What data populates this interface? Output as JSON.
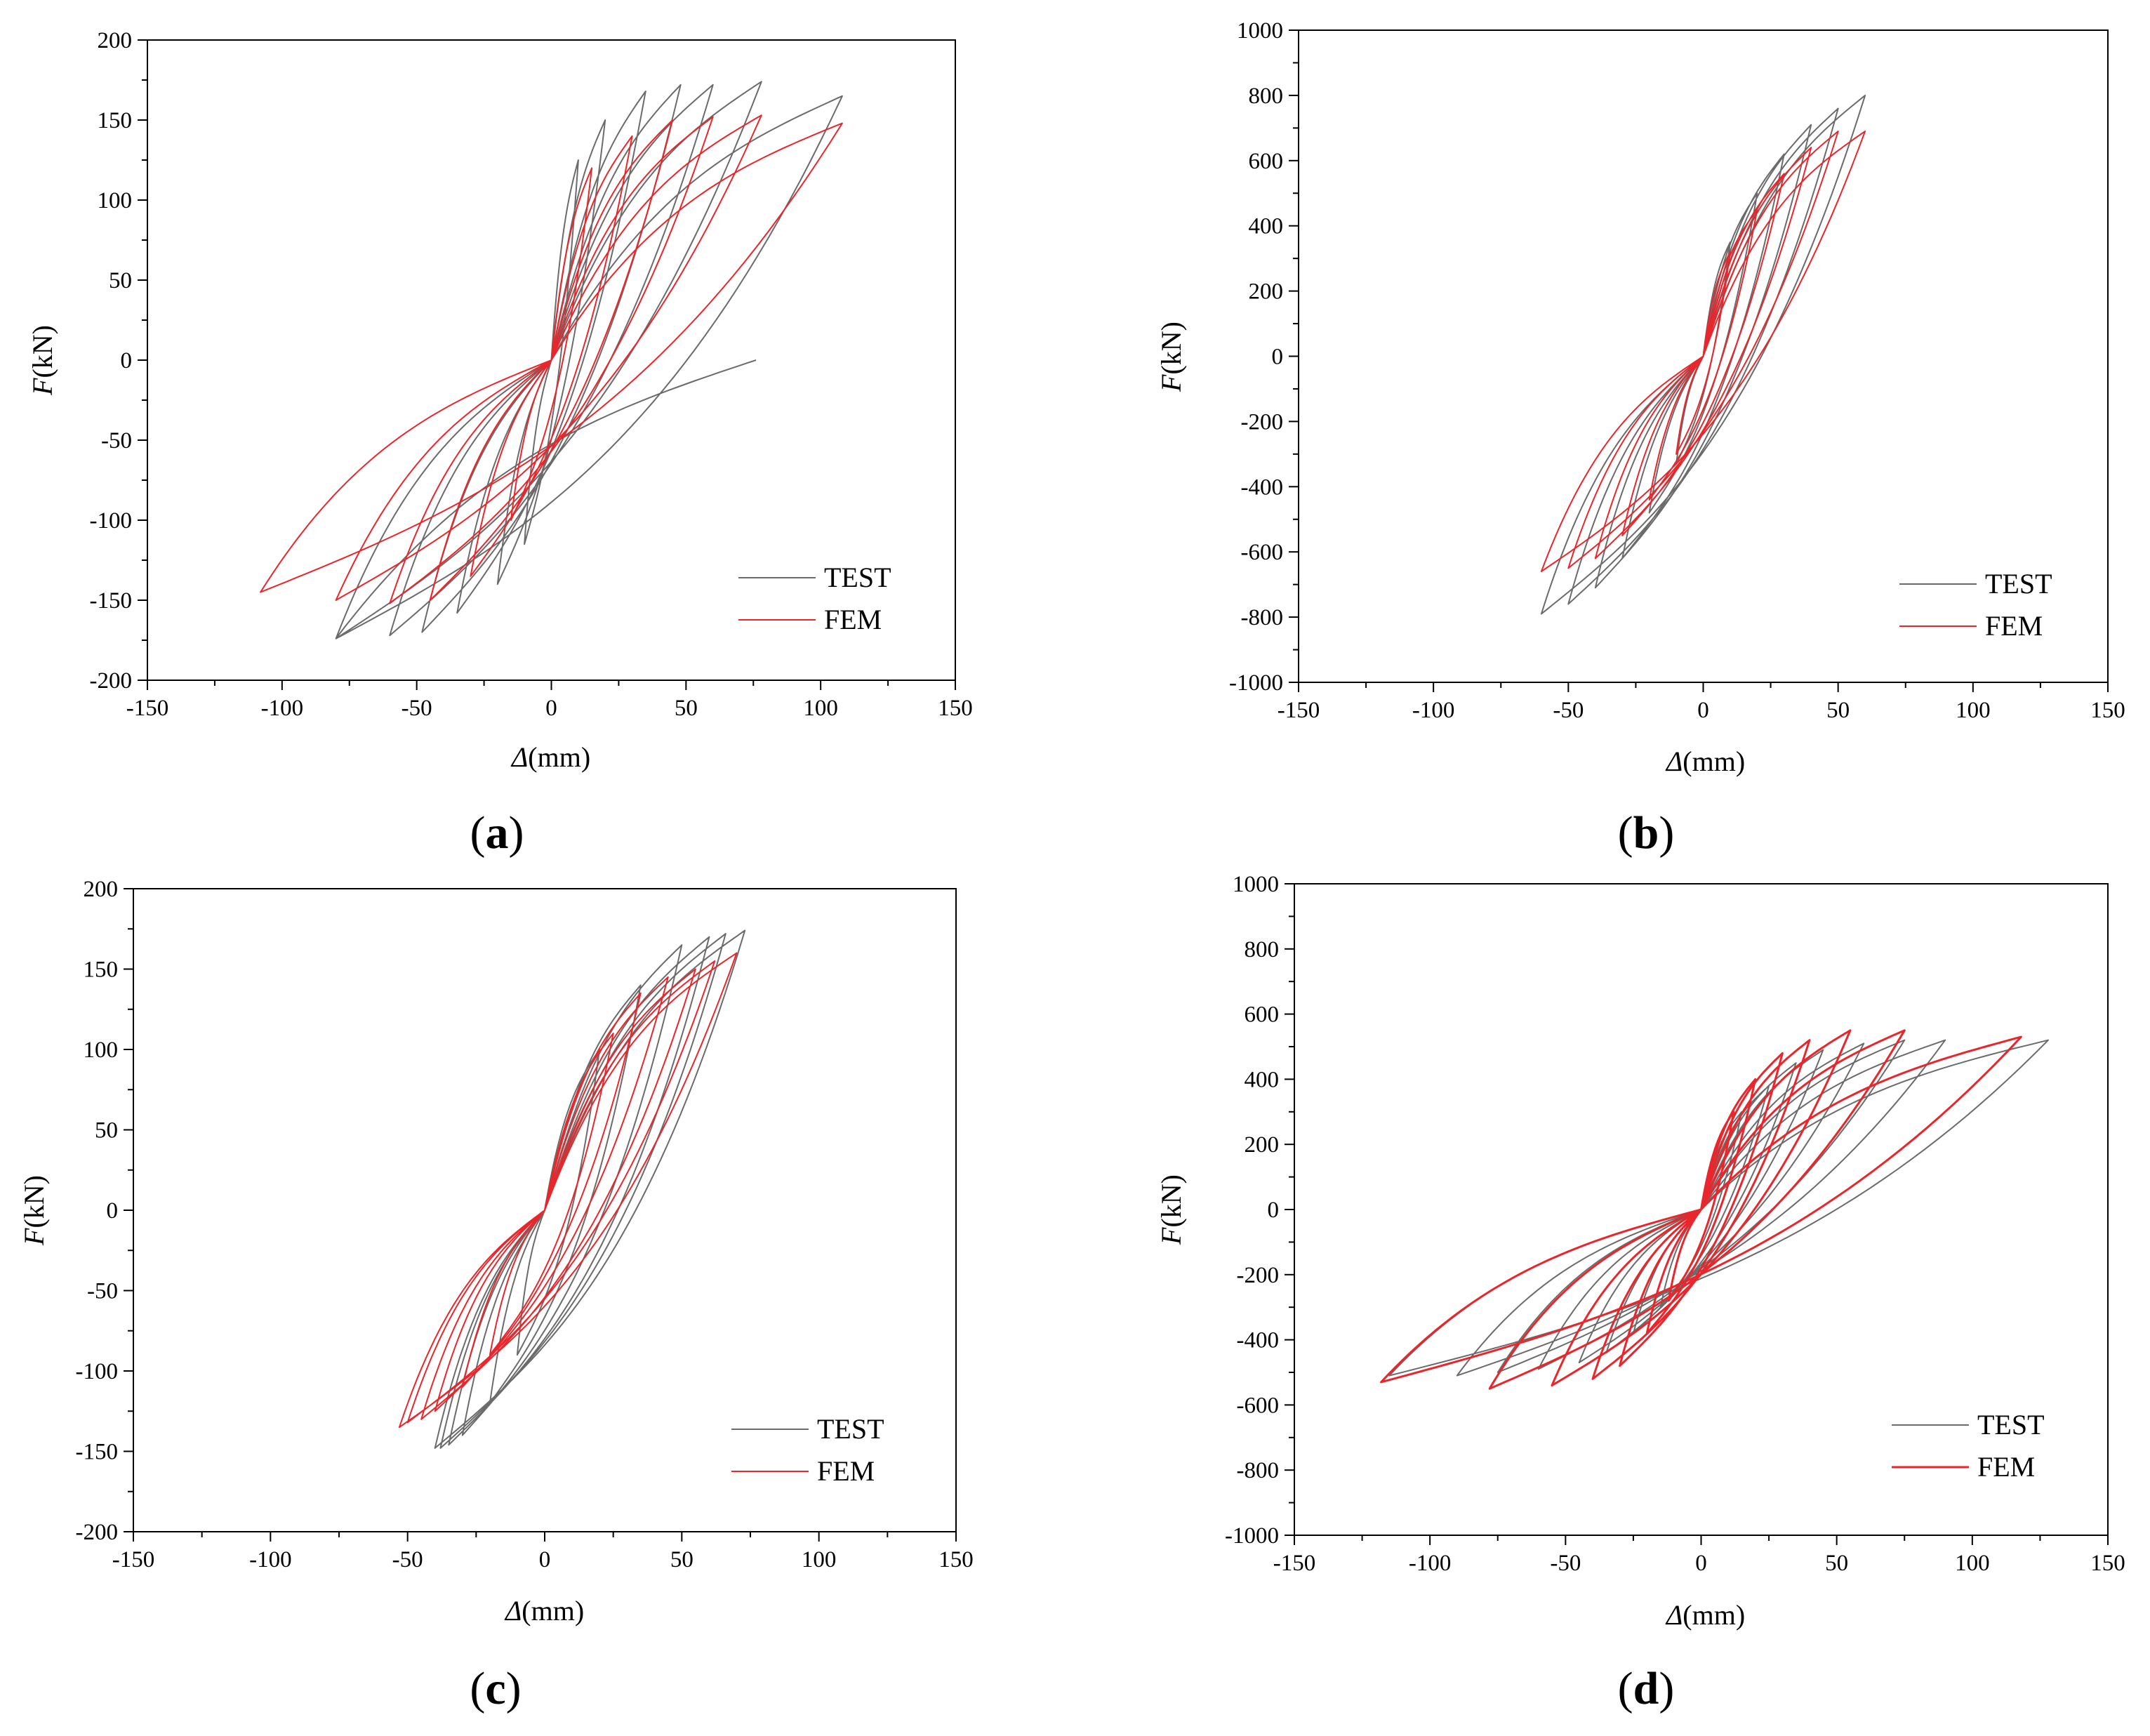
{
  "colors": {
    "test": "#6b6b6b",
    "fem": "#e8262b",
    "axis": "#000000"
  },
  "chart_data": [
    {
      "id": "a",
      "type": "line",
      "panel_label": "a",
      "xlabel_symbol": "Δ",
      "xlabel_unit": "(mm)",
      "ylabel_symbol": "F",
      "ylabel_unit": "(kN)",
      "xlim": [
        -150,
        150
      ],
      "ylim": [
        -200,
        200
      ],
      "xticks": [
        -150,
        -100,
        -50,
        0,
        50,
        100,
        150
      ],
      "yticks": [
        -200,
        -150,
        -100,
        -50,
        0,
        50,
        100,
        150,
        200
      ],
      "legend": [
        "TEST",
        "FEM"
      ],
      "legend_position": "bottom-right",
      "series": [
        {
          "name": "TEST",
          "drift": 0,
          "fade": 0.0,
          "s": 0.0,
          "end": [
            76,
            0
          ],
          "cycles": [
            [
              10,
              125,
              -10,
              -115
            ],
            [
              20,
              150,
              -20,
              -140
            ],
            [
              35,
              168,
              -35,
              -158
            ],
            [
              48,
              172,
              -48,
              -170
            ],
            [
              60,
              172,
              -60,
              -172
            ],
            [
              78,
              174,
              -80,
              -174
            ],
            [
              108,
              165,
              -80,
              -174
            ]
          ]
        },
        {
          "name": "FEM",
          "drift": 0,
          "fade": 0.0,
          "s": 0.0,
          "cycles": [
            [
              15,
              120,
              -15,
              -100
            ],
            [
              30,
              140,
              -30,
              -135
            ],
            [
              45,
              150,
              -45,
              -150
            ],
            [
              60,
              152,
              -60,
              -152
            ],
            [
              78,
              153,
              -80,
              -150
            ],
            [
              108,
              148,
              -108,
              -145
            ]
          ]
        }
      ]
    },
    {
      "id": "b",
      "type": "line",
      "panel_label": "b",
      "xlabel_symbol": "Δ",
      "xlabel_unit": "(mm)",
      "ylabel_symbol": "F",
      "ylabel_unit": "(kN)",
      "xlim": [
        -150,
        150
      ],
      "ylim": [
        -1000,
        1000
      ],
      "xticks": [
        -150,
        -100,
        -50,
        0,
        50,
        100,
        150
      ],
      "yticks": [
        -1000,
        -800,
        -600,
        -400,
        -200,
        0,
        200,
        400,
        600,
        800,
        1000
      ],
      "legend": [
        "TEST",
        "FEM"
      ],
      "legend_position": "bottom-right",
      "series": [
        {
          "name": "TEST",
          "drift": 0,
          "fade": 0.0,
          "s": 0.0,
          "cycles": [
            [
              10,
              350,
              -10,
              -330
            ],
            [
              20,
              500,
              -20,
              -480
            ],
            [
              30,
              620,
              -30,
              -620
            ],
            [
              40,
              710,
              -40,
              -710
            ],
            [
              50,
              760,
              -50,
              -760
            ],
            [
              60,
              800,
              -60,
              -790
            ]
          ]
        },
        {
          "name": "FEM",
          "drift": 0,
          "fade": 0.0,
          "s": 0.0,
          "cycles": [
            [
              10,
              320,
              -10,
              -300
            ],
            [
              20,
              450,
              -20,
              -440
            ],
            [
              30,
              560,
              -30,
              -550
            ],
            [
              40,
              640,
              -40,
              -620
            ],
            [
              50,
              690,
              -50,
              -650
            ],
            [
              60,
              690,
              -60,
              -660
            ]
          ]
        }
      ]
    },
    {
      "id": "c",
      "type": "line",
      "panel_label": "c",
      "xlabel_symbol": "Δ",
      "xlabel_unit": "(mm)",
      "ylabel_symbol": "F",
      "ylabel_unit": "(kN)",
      "xlim": [
        -150,
        150
      ],
      "ylim": [
        -200,
        200
      ],
      "xticks": [
        -150,
        -100,
        -50,
        0,
        50,
        100,
        150
      ],
      "yticks": [
        -200,
        -150,
        -100,
        -50,
        0,
        50,
        100,
        150,
        200
      ],
      "legend": [
        "TEST",
        "FEM"
      ],
      "legend_position": "bottom-right",
      "series": [
        {
          "name": "TEST",
          "drift": 0,
          "fade": 0.0,
          "s": 0.0,
          "cycles": [
            [
              20,
              100,
              -10,
              -90
            ],
            [
              35,
              140,
              -20,
              -120
            ],
            [
              50,
              165,
              -30,
              -140
            ],
            [
              60,
              170,
              -35,
              -146
            ],
            [
              66,
              172,
              -38,
              -148
            ],
            [
              73,
              174,
              -40,
              -148
            ]
          ]
        },
        {
          "name": "FEM",
          "drift": 0,
          "fade": 0.0,
          "s": 0.0,
          "cycles": [
            [
              25,
              110,
              -20,
              -90
            ],
            [
              35,
              135,
              -30,
              -110
            ],
            [
              45,
              145,
              -40,
              -125
            ],
            [
              55,
              150,
              -45,
              -130
            ],
            [
              62,
              155,
              -50,
              -132
            ],
            [
              70,
              160,
              -53,
              -135
            ]
          ]
        }
      ]
    },
    {
      "id": "d",
      "type": "line",
      "panel_label": "d",
      "xlabel_symbol": "Δ",
      "xlabel_unit": "(mm)",
      "ylabel_symbol": "F",
      "ylabel_unit": "(kN)",
      "xlim": [
        -150,
        150
      ],
      "ylim": [
        -1000,
        1000
      ],
      "xticks": [
        -150,
        -100,
        -50,
        0,
        50,
        100,
        150
      ],
      "yticks": [
        -1000,
        -800,
        -600,
        -400,
        -200,
        0,
        200,
        400,
        600,
        800,
        1000
      ],
      "legend": [
        "TEST",
        "FEM"
      ],
      "legend_position": "bottom-right",
      "series": [
        {
          "name": "TEST",
          "drift": 0,
          "fade": 0.0,
          "s": 0.0,
          "cycles": [
            [
              15,
              300,
              -15,
              -300
            ],
            [
              25,
              380,
              -25,
              -380
            ],
            [
              35,
              450,
              -35,
              -440
            ],
            [
              45,
              490,
              -45,
              -470
            ],
            [
              60,
              510,
              -60,
              -490
            ],
            [
              75,
              520,
              -75,
              -500
            ],
            [
              90,
              520,
              -90,
              -510
            ],
            [
              128,
              520,
              -115,
              -510
            ]
          ]
        },
        {
          "name": "FEM",
          "drift": 0,
          "fade": 0.0,
          "s": 0.0,
          "cycles": [
            [
              12,
              300,
              -12,
              -280
            ],
            [
              20,
              400,
              -20,
              -380
            ],
            [
              30,
              480,
              -30,
              -480
            ],
            [
              40,
              520,
              -40,
              -520
            ],
            [
              55,
              550,
              -55,
              -540
            ],
            [
              75,
              550,
              -78,
              -550
            ],
            [
              118,
              530,
              -118,
              -530
            ]
          ]
        }
      ]
    }
  ]
}
